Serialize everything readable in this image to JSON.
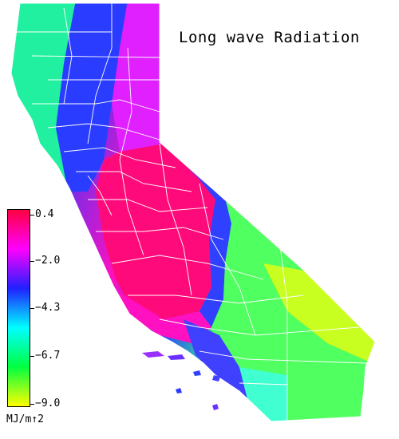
{
  "title": "Long wave Radiation",
  "legend": {
    "unit": "MJ/m↑2",
    "ticks": [
      "0.4",
      "−2.0",
      "−4.3",
      "−6.7",
      "−9.0"
    ],
    "colors": [
      "#ff0040",
      "#ff00ff",
      "#2020ff",
      "#00ffff",
      "#00ff40",
      "#ffff00"
    ]
  },
  "map": {
    "region": "California",
    "colors": {
      "coast": "#20f0a0",
      "north_range": "#2a3cff",
      "central_valley": "#ff0a7a",
      "sierra": "#3040ff",
      "desert": "#90ff30",
      "south_desert": "#c8ff20",
      "boundary": "#ffffff"
    }
  }
}
